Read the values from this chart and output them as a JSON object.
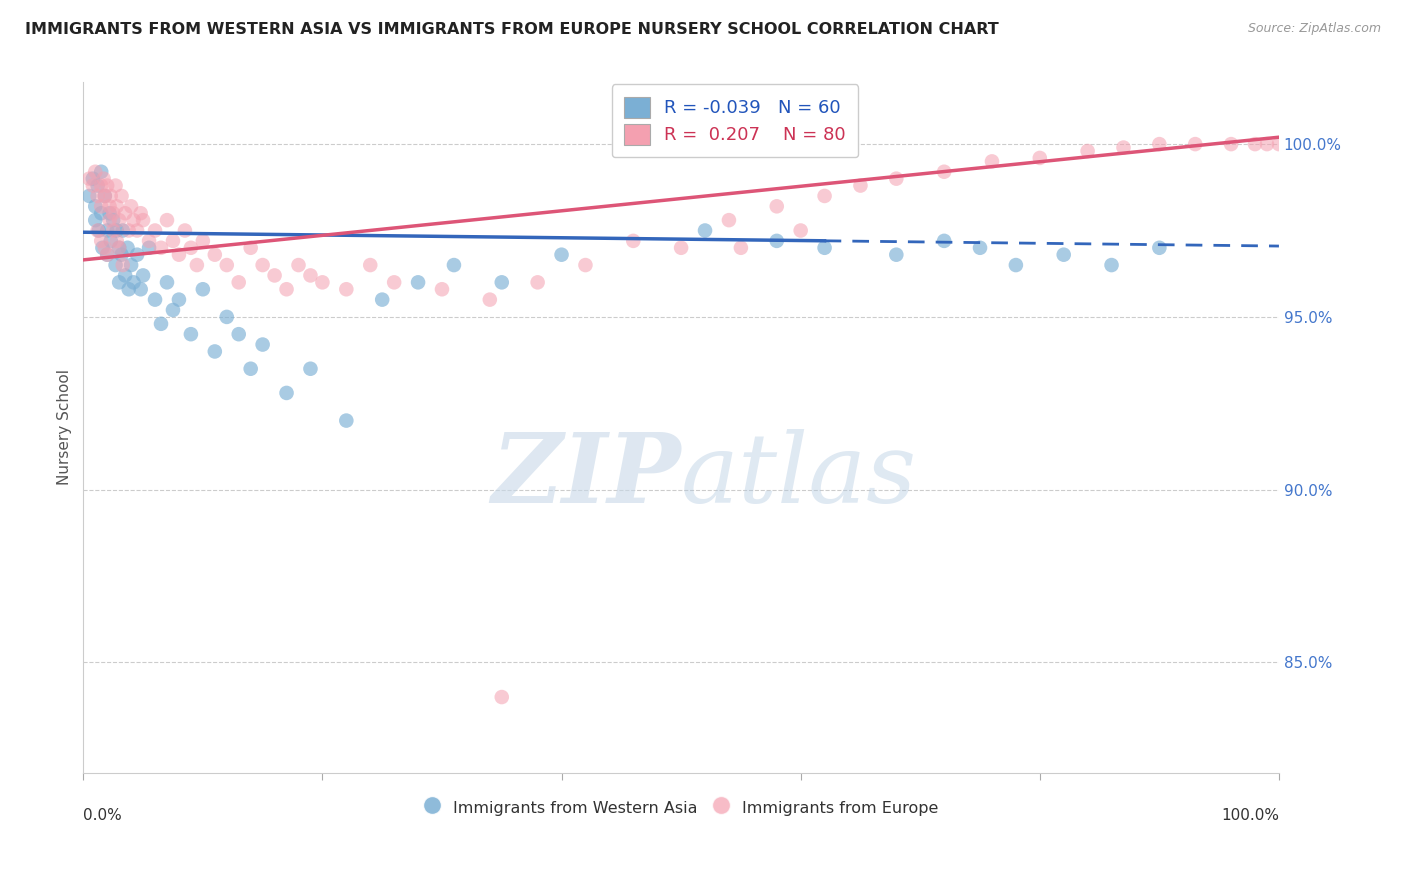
{
  "title": "IMMIGRANTS FROM WESTERN ASIA VS IMMIGRANTS FROM EUROPE NURSERY SCHOOL CORRELATION CHART",
  "source": "Source: ZipAtlas.com",
  "ylabel": "Nursery School",
  "ytick_labels": [
    "100.0%",
    "95.0%",
    "90.0%",
    "85.0%"
  ],
  "ytick_values": [
    1.0,
    0.95,
    0.9,
    0.85
  ],
  "xlim": [
    0.0,
    1.0
  ],
  "ylim": [
    0.818,
    1.018
  ],
  "legend_r_blue": "-0.039",
  "legend_n_blue": "60",
  "legend_r_pink": "0.207",
  "legend_n_pink": "80",
  "blue_color": "#7BAFD4",
  "pink_color": "#F4A0B0",
  "trend_blue_color": "#3366BB",
  "trend_pink_color": "#DD5577",
  "watermark_zip": "ZIP",
  "watermark_atlas": "atlas",
  "blue_scatter_x": [
    0.005,
    0.008,
    0.01,
    0.01,
    0.012,
    0.013,
    0.015,
    0.015,
    0.016,
    0.018,
    0.02,
    0.02,
    0.022,
    0.023,
    0.025,
    0.027,
    0.028,
    0.03,
    0.03,
    0.032,
    0.033,
    0.035,
    0.037,
    0.038,
    0.04,
    0.042,
    0.045,
    0.048,
    0.05,
    0.055,
    0.06,
    0.065,
    0.07,
    0.075,
    0.08,
    0.09,
    0.1,
    0.11,
    0.12,
    0.13,
    0.14,
    0.15,
    0.17,
    0.19,
    0.22,
    0.25,
    0.28,
    0.31,
    0.35,
    0.4,
    0.52,
    0.58,
    0.62,
    0.68,
    0.72,
    0.75,
    0.78,
    0.82,
    0.86,
    0.9
  ],
  "blue_scatter_y": [
    0.985,
    0.99,
    0.982,
    0.978,
    0.988,
    0.975,
    0.992,
    0.98,
    0.97,
    0.985,
    0.975,
    0.968,
    0.98,
    0.972,
    0.978,
    0.965,
    0.975,
    0.97,
    0.96,
    0.968,
    0.975,
    0.962,
    0.97,
    0.958,
    0.965,
    0.96,
    0.968,
    0.958,
    0.962,
    0.97,
    0.955,
    0.948,
    0.96,
    0.952,
    0.955,
    0.945,
    0.958,
    0.94,
    0.95,
    0.945,
    0.935,
    0.942,
    0.928,
    0.935,
    0.92,
    0.955,
    0.96,
    0.965,
    0.96,
    0.968,
    0.975,
    0.972,
    0.97,
    0.968,
    0.972,
    0.97,
    0.965,
    0.968,
    0.965,
    0.97
  ],
  "pink_scatter_x": [
    0.005,
    0.008,
    0.01,
    0.012,
    0.015,
    0.015,
    0.017,
    0.018,
    0.02,
    0.022,
    0.023,
    0.025,
    0.027,
    0.028,
    0.03,
    0.032,
    0.035,
    0.038,
    0.04,
    0.042,
    0.045,
    0.048,
    0.05,
    0.055,
    0.06,
    0.065,
    0.07,
    0.075,
    0.08,
    0.085,
    0.09,
    0.095,
    0.1,
    0.11,
    0.12,
    0.13,
    0.14,
    0.15,
    0.16,
    0.17,
    0.18,
    0.19,
    0.2,
    0.22,
    0.24,
    0.26,
    0.3,
    0.34,
    0.38,
    0.42,
    0.46,
    0.5,
    0.54,
    0.58,
    0.62,
    0.65,
    0.68,
    0.72,
    0.76,
    0.8,
    0.84,
    0.87,
    0.9,
    0.93,
    0.96,
    0.98,
    0.99,
    1.0,
    0.55,
    0.6,
    0.012,
    0.015,
    0.018,
    0.02,
    0.022,
    0.025,
    0.028,
    0.03,
    0.033,
    0.35
  ],
  "pink_scatter_y": [
    0.99,
    0.988,
    0.992,
    0.985,
    0.988,
    0.982,
    0.99,
    0.985,
    0.988,
    0.982,
    0.985,
    0.98,
    0.988,
    0.982,
    0.978,
    0.985,
    0.98,
    0.975,
    0.982,
    0.978,
    0.975,
    0.98,
    0.978,
    0.972,
    0.975,
    0.97,
    0.978,
    0.972,
    0.968,
    0.975,
    0.97,
    0.965,
    0.972,
    0.968,
    0.965,
    0.96,
    0.97,
    0.965,
    0.962,
    0.958,
    0.965,
    0.962,
    0.96,
    0.958,
    0.965,
    0.96,
    0.958,
    0.955,
    0.96,
    0.965,
    0.972,
    0.97,
    0.978,
    0.982,
    0.985,
    0.988,
    0.99,
    0.992,
    0.995,
    0.996,
    0.998,
    0.999,
    1.0,
    1.0,
    1.0,
    1.0,
    1.0,
    1.0,
    0.97,
    0.975,
    0.975,
    0.972,
    0.97,
    0.968,
    0.978,
    0.975,
    0.972,
    0.97,
    0.965,
    0.84
  ],
  "blue_trend_x0": 0.0,
  "blue_trend_x1": 1.0,
  "blue_trend_y0": 0.9745,
  "blue_trend_y1": 0.9705,
  "blue_trend_solid_end": 0.62,
  "pink_trend_x0": 0.0,
  "pink_trend_x1": 1.0,
  "pink_trend_y0": 0.9665,
  "pink_trend_y1": 1.002
}
